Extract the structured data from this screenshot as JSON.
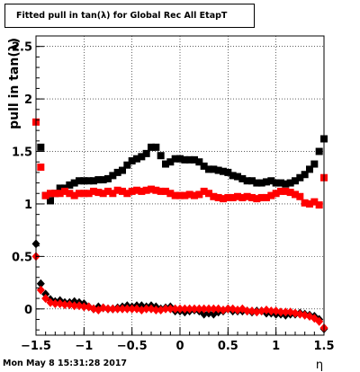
{
  "chart_data": {
    "type": "scatter",
    "title": "Fitted pull in tan(λ) for Global Rec All EtapT",
    "xlabel": "η",
    "ylabel": "pull in tan(λ)",
    "xlim": [
      -1.5,
      1.5
    ],
    "ylim": [
      -0.25,
      2.6
    ],
    "x_ticks": [
      "-1.5",
      "-1",
      "-0.5",
      "0",
      "0.5",
      "1",
      "1.5"
    ],
    "y_ticks": [
      "0",
      "0.5",
      "1",
      "1.5",
      "2",
      "2.5"
    ],
    "grid": true,
    "series": [
      {
        "color": "#000000",
        "marker": "square",
        "x": [
          -1.45,
          -1.4,
          -1.35,
          -1.3,
          -1.25,
          -1.2,
          -1.15,
          -1.1,
          -1.05,
          -1.0,
          -0.95,
          -0.9,
          -0.85,
          -0.8,
          -0.75,
          -0.7,
          -0.65,
          -0.6,
          -0.55,
          -0.5,
          -0.45,
          -0.4,
          -0.35,
          -0.3,
          -0.25,
          -0.2,
          -0.15,
          -0.1,
          -0.05,
          0.0,
          0.05,
          0.1,
          0.15,
          0.2,
          0.25,
          0.3,
          0.35,
          0.4,
          0.45,
          0.5,
          0.55,
          0.6,
          0.65,
          0.7,
          0.75,
          0.8,
          0.85,
          0.9,
          0.95,
          1.0,
          1.05,
          1.1,
          1.15,
          1.2,
          1.25,
          1.3,
          1.35,
          1.4,
          1.45,
          1.5
        ],
        "values": [
          1.54,
          1.08,
          1.03,
          1.1,
          1.15,
          1.15,
          1.18,
          1.2,
          1.22,
          1.22,
          1.22,
          1.22,
          1.23,
          1.23,
          1.24,
          1.27,
          1.3,
          1.32,
          1.37,
          1.41,
          1.43,
          1.45,
          1.48,
          1.54,
          1.54,
          1.46,
          1.38,
          1.4,
          1.43,
          1.43,
          1.42,
          1.42,
          1.42,
          1.4,
          1.36,
          1.33,
          1.33,
          1.32,
          1.31,
          1.3,
          1.27,
          1.26,
          1.24,
          1.22,
          1.22,
          1.2,
          1.2,
          1.21,
          1.22,
          1.2,
          1.2,
          1.19,
          1.2,
          1.22,
          1.25,
          1.28,
          1.33,
          1.38,
          1.5,
          1.62
        ]
      },
      {
        "color": "#ff0000",
        "marker": "square",
        "x": [
          -1.5,
          -1.45,
          -1.4,
          -1.35,
          -1.3,
          -1.25,
          -1.2,
          -1.15,
          -1.1,
          -1.05,
          -1.0,
          -0.95,
          -0.9,
          -0.85,
          -0.8,
          -0.75,
          -0.7,
          -0.65,
          -0.6,
          -0.55,
          -0.5,
          -0.45,
          -0.4,
          -0.35,
          -0.3,
          -0.25,
          -0.2,
          -0.15,
          -0.1,
          -0.05,
          0.0,
          0.05,
          0.1,
          0.15,
          0.2,
          0.25,
          0.3,
          0.35,
          0.4,
          0.45,
          0.5,
          0.55,
          0.6,
          0.65,
          0.7,
          0.75,
          0.8,
          0.85,
          0.9,
          0.95,
          1.0,
          1.05,
          1.1,
          1.15,
          1.2,
          1.25,
          1.3,
          1.35,
          1.4,
          1.45,
          1.5
        ],
        "values": [
          1.78,
          1.35,
          1.08,
          1.1,
          1.1,
          1.1,
          1.12,
          1.1,
          1.08,
          1.1,
          1.1,
          1.1,
          1.12,
          1.11,
          1.1,
          1.12,
          1.1,
          1.13,
          1.12,
          1.1,
          1.12,
          1.13,
          1.12,
          1.13,
          1.14,
          1.13,
          1.12,
          1.12,
          1.1,
          1.08,
          1.08,
          1.08,
          1.09,
          1.08,
          1.09,
          1.12,
          1.1,
          1.07,
          1.06,
          1.05,
          1.06,
          1.06,
          1.07,
          1.06,
          1.07,
          1.06,
          1.05,
          1.06,
          1.06,
          1.08,
          1.1,
          1.12,
          1.12,
          1.11,
          1.09,
          1.07,
          1.01,
          1.0,
          1.02,
          0.99,
          1.25
        ]
      },
      {
        "color": "#000000",
        "marker": "diamond",
        "x": [
          -1.5,
          -1.45,
          -1.4,
          -1.35,
          -1.3,
          -1.25,
          -1.2,
          -1.15,
          -1.1,
          -1.05,
          -1.0,
          -0.95,
          -0.9,
          -0.85,
          -0.8,
          -0.75,
          -0.7,
          -0.65,
          -0.6,
          -0.55,
          -0.5,
          -0.45,
          -0.4,
          -0.35,
          -0.3,
          -0.25,
          -0.2,
          -0.15,
          -0.1,
          -0.05,
          0.0,
          0.05,
          0.1,
          0.15,
          0.2,
          0.25,
          0.3,
          0.35,
          0.4,
          0.45,
          0.5,
          0.55,
          0.6,
          0.65,
          0.7,
          0.75,
          0.8,
          0.85,
          0.9,
          0.95,
          1.0,
          1.05,
          1.1,
          1.15,
          1.2,
          1.25,
          1.3,
          1.35,
          1.4,
          1.45,
          1.5
        ],
        "values": [
          0.62,
          0.24,
          0.14,
          0.09,
          0.07,
          0.08,
          0.06,
          0.06,
          0.07,
          0.06,
          0.05,
          0.02,
          0.0,
          0.02,
          0.01,
          0.0,
          0.0,
          0.01,
          0.02,
          0.03,
          0.02,
          0.03,
          0.03,
          0.02,
          0.03,
          0.02,
          0.0,
          0.01,
          0.02,
          -0.02,
          -0.02,
          -0.03,
          -0.02,
          -0.01,
          -0.02,
          -0.05,
          -0.04,
          -0.05,
          -0.03,
          -0.02,
          0.0,
          -0.02,
          -0.02,
          -0.02,
          -0.02,
          -0.03,
          -0.02,
          -0.02,
          -0.04,
          -0.04,
          -0.05,
          -0.05,
          -0.06,
          -0.05,
          -0.05,
          -0.04,
          -0.05,
          -0.06,
          -0.07,
          -0.1,
          -0.19
        ]
      },
      {
        "color": "#ff0000",
        "marker": "diamond",
        "x": [
          -1.5,
          -1.45,
          -1.4,
          -1.35,
          -1.3,
          -1.25,
          -1.2,
          -1.15,
          -1.1,
          -1.05,
          -1.0,
          -0.95,
          -0.9,
          -0.85,
          -0.8,
          -0.75,
          -0.7,
          -0.65,
          -0.6,
          -0.55,
          -0.5,
          -0.45,
          -0.4,
          -0.35,
          -0.3,
          -0.25,
          -0.2,
          -0.15,
          -0.1,
          -0.05,
          0.0,
          0.05,
          0.1,
          0.15,
          0.2,
          0.25,
          0.3,
          0.35,
          0.4,
          0.45,
          0.5,
          0.55,
          0.6,
          0.65,
          0.7,
          0.75,
          0.8,
          0.85,
          0.9,
          0.95,
          1.0,
          1.05,
          1.1,
          1.15,
          1.2,
          1.25,
          1.3,
          1.35,
          1.4,
          1.45,
          1.5
        ],
        "values": [
          0.5,
          0.18,
          0.1,
          0.06,
          0.05,
          0.05,
          0.04,
          0.04,
          0.03,
          0.03,
          0.02,
          0.02,
          0.0,
          -0.01,
          0.01,
          0.0,
          0.0,
          0.0,
          0.0,
          0.0,
          0.0,
          0.0,
          -0.01,
          0.0,
          0.0,
          -0.01,
          -0.01,
          0.0,
          0.0,
          0.0,
          0.0,
          0.0,
          0.0,
          0.0,
          0.0,
          0.0,
          0.0,
          0.0,
          0.0,
          -0.01,
          0.0,
          0.0,
          -0.01,
          0.0,
          -0.02,
          -0.02,
          -0.03,
          -0.02,
          -0.01,
          -0.02,
          -0.02,
          -0.03,
          -0.03,
          -0.03,
          -0.04,
          -0.05,
          -0.06,
          -0.07,
          -0.09,
          -0.12,
          -0.18
        ]
      }
    ]
  },
  "footer": {
    "date": "Mon May  8 15:31:28 2017"
  }
}
